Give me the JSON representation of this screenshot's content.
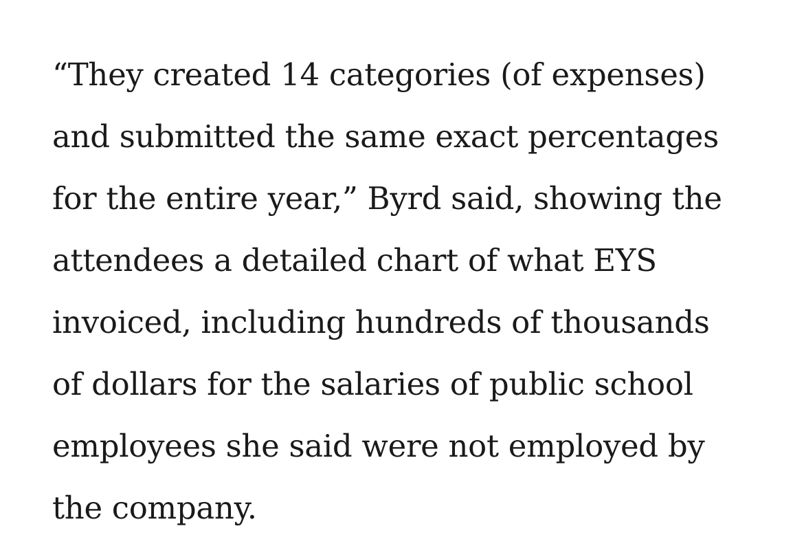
{
  "article": {
    "paragraph_lines": [
      "“They created 14 categories (of expenses)",
      "and submitted the same exact percentages",
      "for the entire year,” Byrd said, showing the",
      "attendees a detailed chart of what EYS",
      "invoiced, including hundreds of thousands",
      "of dollars for the salaries of public school",
      "employees she said were not employed by",
      "the company."
    ]
  }
}
